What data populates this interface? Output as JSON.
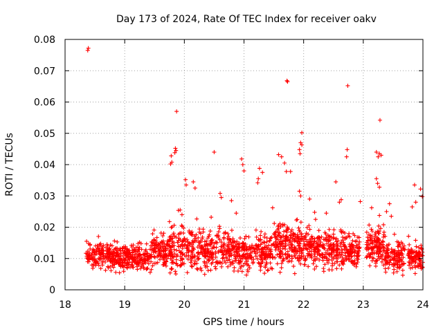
{
  "chart_data": {
    "type": "scatter",
    "title": "Day 173 of 2024, Rate Of TEC Index for receiver oakv",
    "xlabel": "GPS time / hours",
    "ylabel": "ROTI / TECUs",
    "xlim": [
      18,
      24
    ],
    "ylim": [
      0,
      0.08
    ],
    "xticks": [
      18,
      19,
      20,
      21,
      22,
      23,
      24
    ],
    "yticks": [
      0,
      0.01,
      0.02,
      0.03,
      0.04,
      0.05,
      0.06,
      0.07,
      0.08
    ],
    "xtick_labels": [
      "18",
      "19",
      "20",
      "21",
      "22",
      "23",
      "24"
    ],
    "ytick_labels": [
      "0",
      "0.01",
      "0.02",
      "0.03",
      "0.04",
      "0.05",
      "0.06",
      "0.07",
      "0.08"
    ],
    "grid": true,
    "marker": "+",
    "color": "#ff0000",
    "series": [
      {
        "name": "ROTI",
        "points": [
          [
            18.38,
            0.0765
          ],
          [
            18.39,
            0.0772
          ],
          [
            19.87,
            0.057
          ],
          [
            21.72,
            0.0668
          ],
          [
            21.73,
            0.0665
          ],
          [
            22.74,
            0.0652
          ],
          [
            23.28,
            0.0542
          ],
          [
            21.97,
            0.0502
          ],
          [
            21.95,
            0.047
          ],
          [
            21.97,
            0.0463
          ],
          [
            19.85,
            0.0452
          ],
          [
            19.86,
            0.0445
          ],
          [
            19.84,
            0.0438
          ],
          [
            19.78,
            0.0428
          ],
          [
            19.77,
            0.0402
          ],
          [
            19.79,
            0.0408
          ],
          [
            20.5,
            0.044
          ],
          [
            22.73,
            0.0448
          ],
          [
            22.72,
            0.0425
          ],
          [
            23.22,
            0.044
          ],
          [
            23.27,
            0.0435
          ],
          [
            23.3,
            0.043
          ],
          [
            23.25,
            0.0425
          ],
          [
            21.58,
            0.0432
          ],
          [
            21.63,
            0.0425
          ],
          [
            21.93,
            0.0448
          ],
          [
            21.94,
            0.0435
          ],
          [
            20.96,
            0.0418
          ],
          [
            20.98,
            0.04
          ],
          [
            21.0,
            0.038
          ],
          [
            21.26,
            0.0388
          ],
          [
            21.31,
            0.0375
          ],
          [
            21.68,
            0.0405
          ],
          [
            21.71,
            0.0378
          ],
          [
            21.78,
            0.0378
          ],
          [
            22.54,
            0.0345
          ],
          [
            21.24,
            0.0355
          ],
          [
            21.23,
            0.0342
          ],
          [
            20.02,
            0.0352
          ],
          [
            20.03,
            0.0335
          ],
          [
            20.15,
            0.0345
          ],
          [
            20.18,
            0.0325
          ],
          [
            20.6,
            0.0308
          ],
          [
            20.62,
            0.0295
          ],
          [
            23.22,
            0.0355
          ],
          [
            23.24,
            0.034
          ],
          [
            23.27,
            0.0328
          ],
          [
            23.86,
            0.0335
          ],
          [
            23.96,
            0.0322
          ],
          [
            23.99,
            0.0298
          ],
          [
            23.88,
            0.028
          ],
          [
            23.82,
            0.0265
          ],
          [
            21.93,
            0.0315
          ],
          [
            21.95,
            0.03
          ],
          [
            22.1,
            0.029
          ],
          [
            22.63,
            0.0288
          ],
          [
            22.6,
            0.028
          ],
          [
            19.93,
            0.0255
          ],
          [
            19.96,
            0.024
          ],
          [
            22.38,
            0.0245
          ],
          [
            21.48,
            0.0262
          ],
          [
            20.79,
            0.0285
          ],
          [
            20.45,
            0.0232
          ],
          [
            20.87,
            0.0245
          ],
          [
            22.2,
            0.0225
          ],
          [
            23.44,
            0.0275
          ],
          [
            23.39,
            0.025
          ],
          [
            23.47,
            0.0235
          ],
          [
            22.95,
            0.0282
          ],
          [
            23.14,
            0.0262
          ]
        ],
        "band": [
          {
            "x0": 18.35,
            "x1": 18.55,
            "lo": 0.005,
            "hi": 0.016,
            "n": 60
          },
          {
            "x0": 18.55,
            "x1": 19.0,
            "lo": 0.004,
            "hi": 0.017,
            "n": 170
          },
          {
            "x0": 19.0,
            "x1": 19.45,
            "lo": 0.004,
            "hi": 0.016,
            "n": 170
          },
          {
            "x0": 19.45,
            "x1": 19.75,
            "lo": 0.005,
            "hi": 0.02,
            "n": 110
          },
          {
            "x0": 19.75,
            "x1": 20.3,
            "lo": 0.003,
            "hi": 0.022,
            "n": 190
          },
          {
            "x0": 20.3,
            "x1": 20.9,
            "lo": 0.004,
            "hi": 0.021,
            "n": 210
          },
          {
            "x0": 20.9,
            "x1": 21.5,
            "lo": 0.004,
            "hi": 0.02,
            "n": 210
          },
          {
            "x0": 21.5,
            "x1": 22.0,
            "lo": 0.004,
            "hi": 0.024,
            "n": 200
          },
          {
            "x0": 22.0,
            "x1": 22.5,
            "lo": 0.004,
            "hi": 0.022,
            "n": 190
          },
          {
            "x0": 22.5,
            "x1": 22.95,
            "lo": 0.005,
            "hi": 0.02,
            "n": 160
          },
          {
            "x0": 23.05,
            "x1": 23.35,
            "lo": 0.004,
            "hi": 0.023,
            "n": 130
          },
          {
            "x0": 23.35,
            "x1": 23.7,
            "lo": 0.004,
            "hi": 0.017,
            "n": 120
          },
          {
            "x0": 23.75,
            "x1": 24.0,
            "lo": 0.004,
            "hi": 0.016,
            "n": 100
          }
        ]
      }
    ]
  }
}
